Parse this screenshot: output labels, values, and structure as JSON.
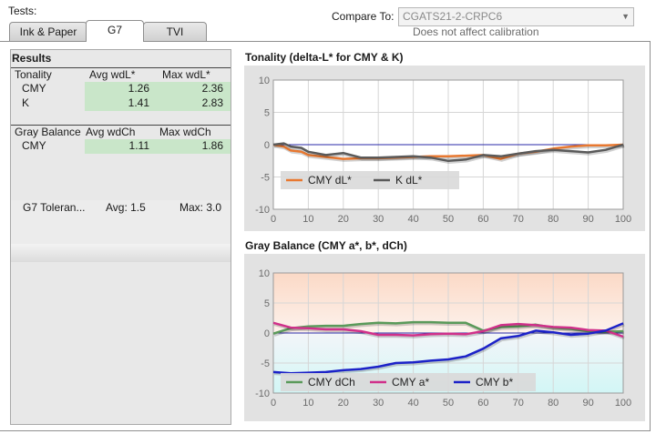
{
  "header": {
    "tests_label": "Tests:",
    "tabs": [
      {
        "label": "Ink & Paper",
        "active": false
      },
      {
        "label": "G7",
        "active": true
      },
      {
        "label": "TVI",
        "active": false
      }
    ],
    "compare_label": "Compare To:",
    "compare_value": "CGATS21-2-CRPC6",
    "compare_note": "Does not affect calibration"
  },
  "results": {
    "title": "Results",
    "tonality": {
      "headers": [
        "Tonality",
        "Avg wdL*",
        "Max wdL*"
      ],
      "rows": [
        {
          "name": "CMY",
          "avg": "1.26",
          "max": "2.36"
        },
        {
          "name": "K",
          "avg": "1.41",
          "max": "2.83"
        }
      ]
    },
    "gray_balance": {
      "headers": [
        "Gray Balance",
        "Avg wdCh",
        "Max wdCh"
      ],
      "rows": [
        {
          "name": "CMY",
          "avg": "1.11",
          "max": "1.86"
        }
      ]
    },
    "tolerance": {
      "label": "G7 Toleran...",
      "avg": "Avg: 1.5",
      "max": "Max: 3.0"
    }
  },
  "chart_data": [
    {
      "type": "line",
      "title": "Tonality (delta-L* for CMY & K)",
      "xlim": [
        0,
        100
      ],
      "ylim": [
        -10,
        10
      ],
      "xticks": [
        0,
        10,
        20,
        30,
        40,
        50,
        60,
        70,
        80,
        90,
        100
      ],
      "yticks": [
        -10,
        -5,
        0,
        5,
        10
      ],
      "grid": true,
      "legend": "bottom-left",
      "series": [
        {
          "name": "CMY dL*",
          "color": "#e87830",
          "x": [
            0,
            3,
            5,
            8,
            10,
            15,
            20,
            25,
            30,
            35,
            40,
            45,
            50,
            55,
            60,
            65,
            70,
            75,
            80,
            85,
            90,
            95,
            100
          ],
          "y": [
            0,
            -0.3,
            -0.9,
            -1.1,
            -1.6,
            -1.9,
            -2.2,
            -2.1,
            -2.1,
            -2.0,
            -1.9,
            -1.8,
            -1.8,
            -1.7,
            -1.6,
            -2.2,
            -1.4,
            -1.1,
            -0.6,
            -0.3,
            -0.1,
            -0.1,
            0
          ]
        },
        {
          "name": "K dL*",
          "color": "#5a5a5a",
          "x": [
            0,
            3,
            5,
            8,
            10,
            15,
            20,
            25,
            30,
            35,
            40,
            45,
            50,
            55,
            60,
            65,
            70,
            75,
            80,
            85,
            90,
            95,
            100
          ],
          "y": [
            0,
            0.2,
            -0.3,
            -0.5,
            -1.1,
            -1.6,
            -1.3,
            -2.0,
            -2.0,
            -1.9,
            -1.8,
            -2.0,
            -2.5,
            -2.3,
            -1.6,
            -1.8,
            -1.4,
            -1.0,
            -0.8,
            -1.0,
            -1.2,
            -0.8,
            0
          ]
        }
      ]
    },
    {
      "type": "line",
      "title": "Gray Balance (CMY a*, b*, dCh)",
      "xlim": [
        0,
        100
      ],
      "ylim": [
        -10,
        10
      ],
      "xticks": [
        0,
        10,
        20,
        30,
        40,
        50,
        60,
        70,
        80,
        90,
        100
      ],
      "yticks": [
        -10,
        -5,
        0,
        5,
        10
      ],
      "grid": true,
      "legend": "bottom-left",
      "series": [
        {
          "name": "CMY dCh",
          "color": "#5a9a5a",
          "x": [
            0,
            5,
            10,
            15,
            20,
            25,
            30,
            35,
            40,
            45,
            50,
            55,
            60,
            65,
            70,
            75,
            80,
            85,
            90,
            95,
            100
          ],
          "y": [
            -0.1,
            0.8,
            1.1,
            1.2,
            1.2,
            1.5,
            1.7,
            1.6,
            1.8,
            1.8,
            1.7,
            1.7,
            0.4,
            1.0,
            1.1,
            1.4,
            0.9,
            0.7,
            0.3,
            0.2,
            0.3
          ]
        },
        {
          "name": "CMY a*",
          "color": "#d0308a",
          "x": [
            0,
            5,
            10,
            15,
            20,
            25,
            30,
            35,
            40,
            45,
            50,
            55,
            60,
            65,
            70,
            75,
            80,
            85,
            90,
            95,
            100
          ],
          "y": [
            1.7,
            0.9,
            0.8,
            0.6,
            0.6,
            0.3,
            -0.3,
            -0.3,
            -0.4,
            -0.2,
            -0.1,
            -0.2,
            0.3,
            1.3,
            1.5,
            1.3,
            1.0,
            0.9,
            0.5,
            0.4,
            -0.6
          ]
        },
        {
          "name": "CMY b*",
          "color": "#1c22c8",
          "x": [
            0,
            5,
            10,
            15,
            20,
            25,
            30,
            35,
            40,
            45,
            50,
            55,
            60,
            65,
            70,
            75,
            80,
            85,
            90,
            95,
            100
          ],
          "y": [
            -6.5,
            -6.7,
            -6.6,
            -6.5,
            -6.2,
            -6.0,
            -5.6,
            -5.0,
            -4.9,
            -4.6,
            -4.4,
            -3.9,
            -2.6,
            -0.9,
            -0.5,
            0.4,
            0.1,
            -0.3,
            -0.1,
            0.4,
            1.6
          ]
        }
      ]
    }
  ]
}
